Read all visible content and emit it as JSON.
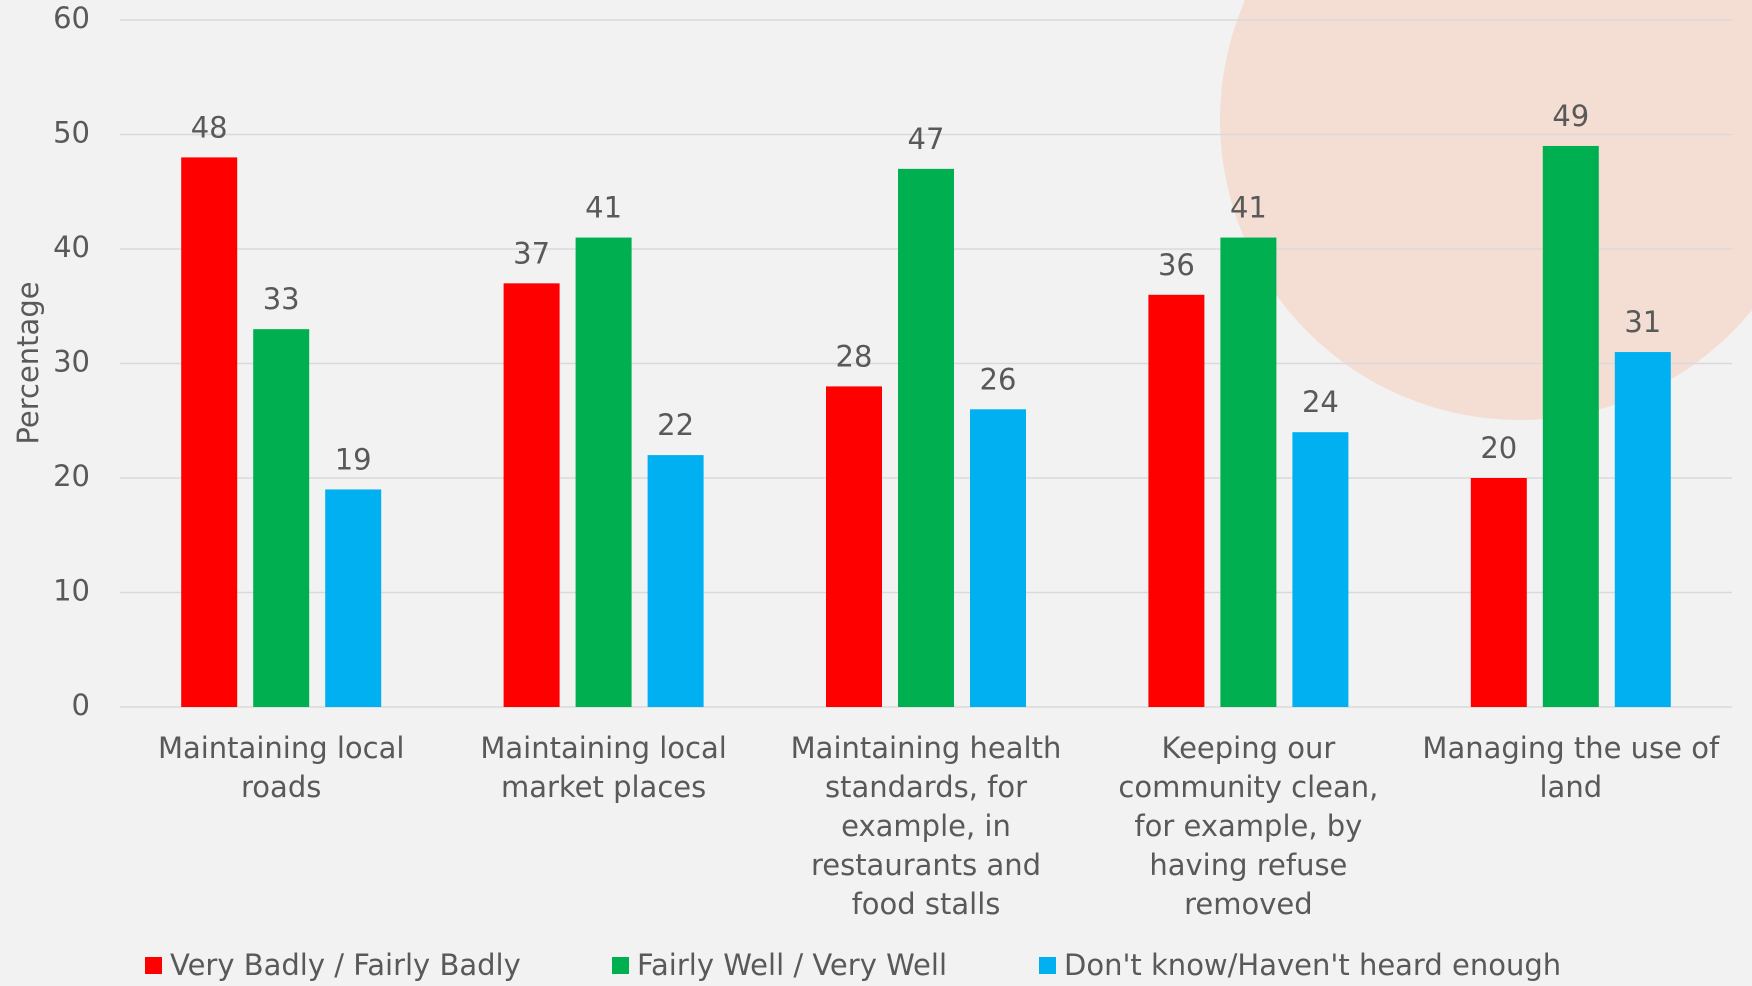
{
  "chart_data": {
    "type": "bar",
    "y_label": "Percentage",
    "categories": [
      "Maintaining local roads",
      "Maintaining local market places",
      "Maintaining health standards, for example, in restaurants and food stalls",
      "Keeping our community clean, for example, by having refuse removed",
      "Managing the use of land"
    ],
    "series": [
      {
        "name": "Very Badly / Fairly Badly",
        "color": "#ff0000",
        "values": [
          48,
          37,
          28,
          36,
          20
        ]
      },
      {
        "name": "Fairly Well / Very Well",
        "color": "#00b050",
        "values": [
          33,
          41,
          47,
          41,
          49
        ]
      },
      {
        "name": "Don't know/Haven't heard enough",
        "color": "#00b0f0",
        "values": [
          19,
          22,
          26,
          24,
          31
        ]
      }
    ],
    "ylim": [
      0,
      60
    ],
    "yticks": [
      0,
      10,
      20,
      30,
      40,
      50,
      60
    ],
    "grid": true,
    "legend": "bottom"
  }
}
